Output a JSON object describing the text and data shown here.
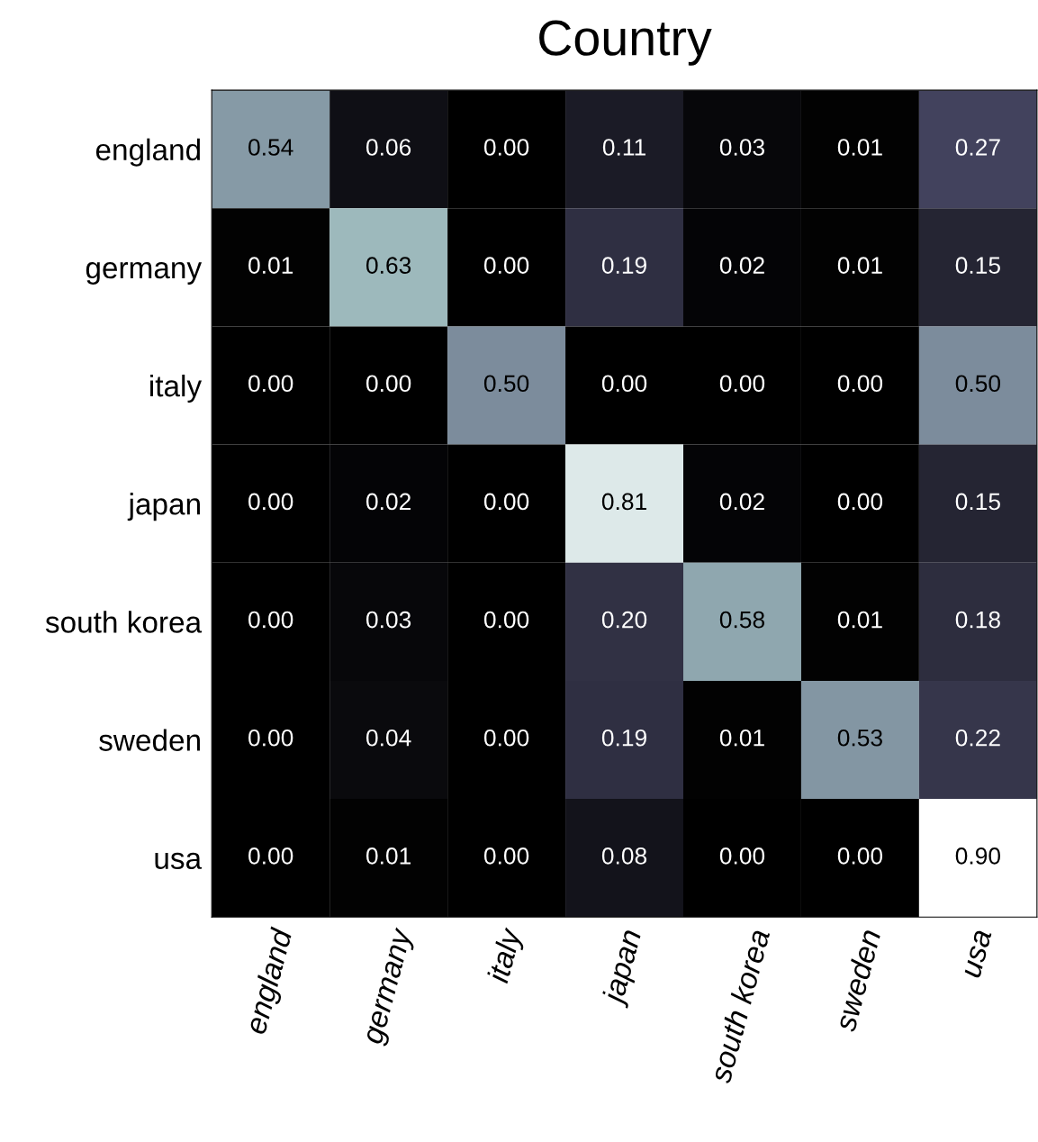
{
  "chart_data": {
    "type": "heatmap",
    "title": "Country",
    "categories": [
      "england",
      "germany",
      "italy",
      "japan",
      "south korea",
      "sweden",
      "usa"
    ],
    "y_categories": [
      "england",
      "germany",
      "italy",
      "japan",
      "south korea",
      "sweden",
      "usa"
    ],
    "cells": [
      [
        0.54,
        0.06,
        0.0,
        0.11,
        0.03,
        0.01,
        0.27
      ],
      [
        0.01,
        0.63,
        0.0,
        0.19,
        0.02,
        0.01,
        0.15
      ],
      [
        0.0,
        0.0,
        0.5,
        0.0,
        0.0,
        0.0,
        0.5
      ],
      [
        0.0,
        0.02,
        0.0,
        0.81,
        0.02,
        0.0,
        0.15
      ],
      [
        0.0,
        0.03,
        0.0,
        0.2,
        0.58,
        0.01,
        0.18
      ],
      [
        0.0,
        0.04,
        0.0,
        0.19,
        0.01,
        0.53,
        0.22
      ],
      [
        0.0,
        0.01,
        0.0,
        0.08,
        0.0,
        0.0,
        0.9
      ]
    ],
    "cell_labels": [
      [
        "0.54",
        "0.06",
        "0.00",
        "0.11",
        "0.03",
        "0.01",
        "0.27"
      ],
      [
        "0.01",
        "0.63",
        "0.00",
        "0.19",
        "0.02",
        "0.01",
        "0.15"
      ],
      [
        "0.00",
        "0.00",
        "0.50",
        "0.00",
        "0.00",
        "0.00",
        "0.50"
      ],
      [
        "0.00",
        "0.02",
        "0.00",
        "0.81",
        "0.02",
        "0.00",
        "0.15"
      ],
      [
        "0.00",
        "0.03",
        "0.00",
        "0.20",
        "0.58",
        "0.01",
        "0.18"
      ],
      [
        "0.00",
        "0.04",
        "0.00",
        "0.19",
        "0.01",
        "0.53",
        "0.22"
      ],
      [
        "0.00",
        "0.01",
        "0.00",
        "0.08",
        "0.00",
        "0.00",
        "0.90"
      ]
    ]
  }
}
